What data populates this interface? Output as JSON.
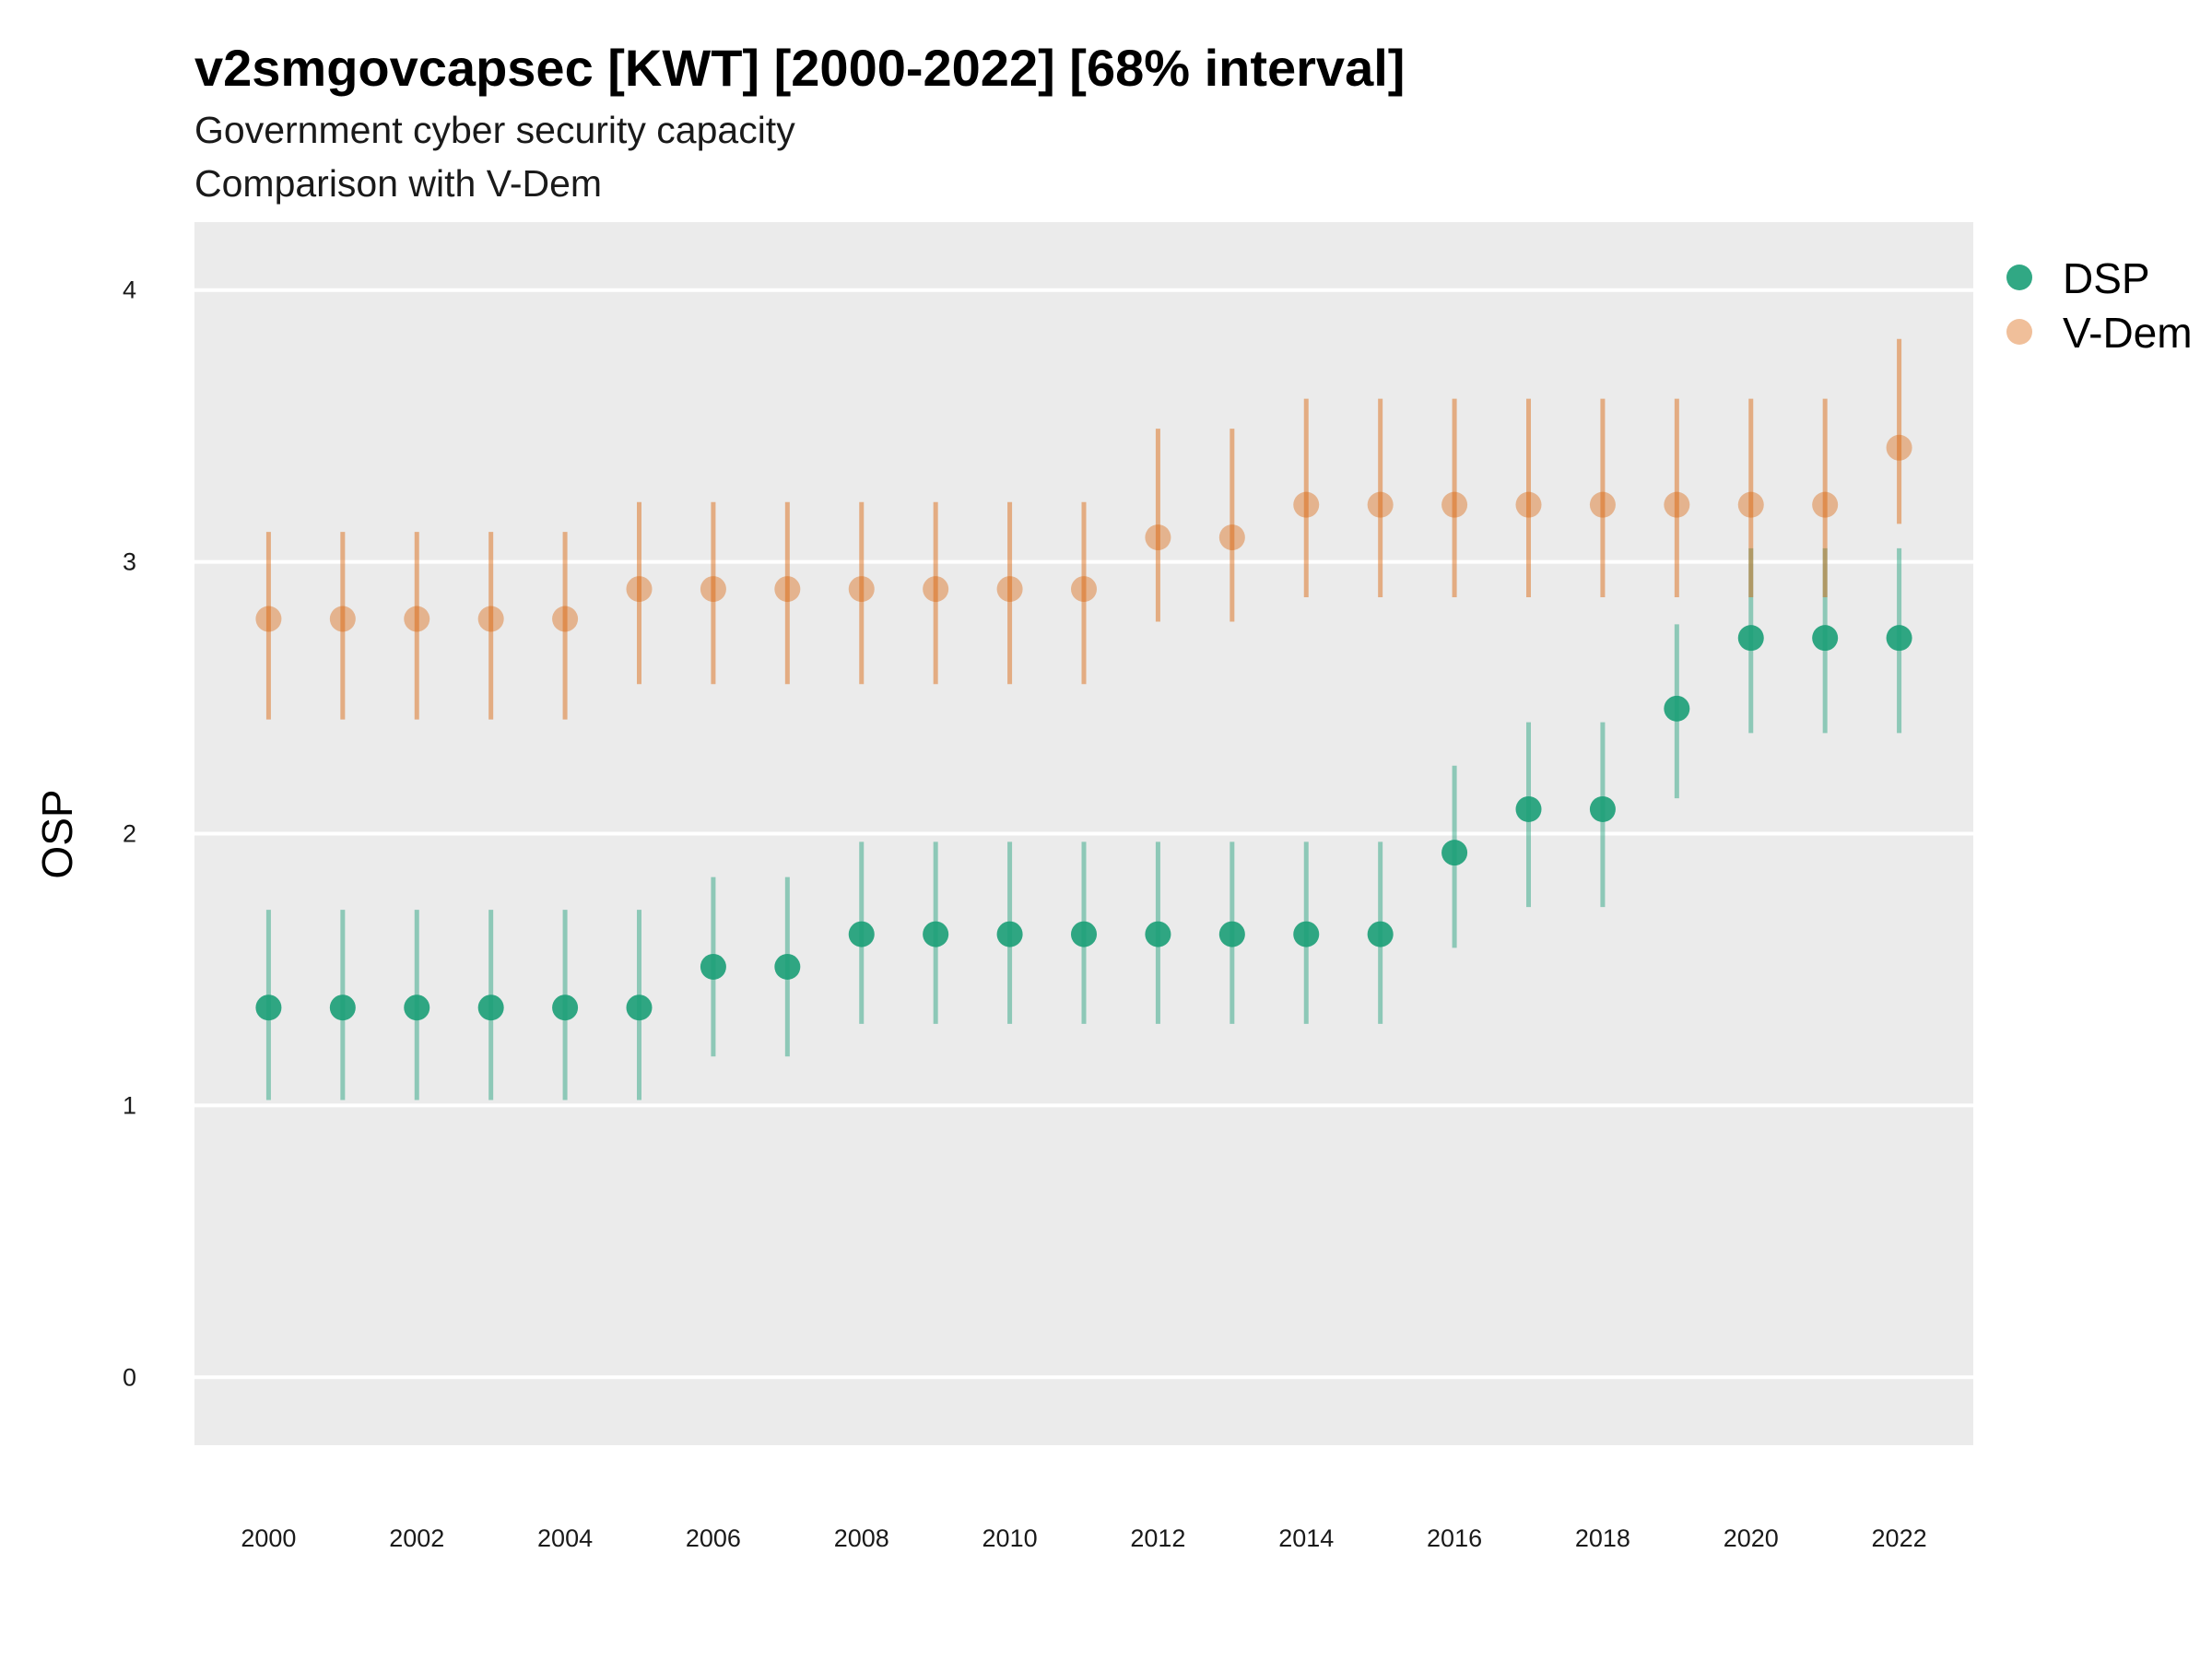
{
  "chart_data": {
    "type": "scatter",
    "title": "v2smgovcapsec [KWT] [2000-2022] [68% interval]",
    "subtitle": "Government cyber security capacity",
    "subtitle2": "Comparison with V-Dem",
    "xlabel": "",
    "ylabel": "OSP",
    "xlim": [
      1999,
      2023
    ],
    "ylim": [
      -0.25,
      4.25
    ],
    "x_ticks": [
      2000,
      2002,
      2004,
      2006,
      2008,
      2010,
      2012,
      2014,
      2016,
      2018,
      2020,
      2022
    ],
    "y_ticks": [
      0,
      1,
      2,
      3,
      4
    ],
    "grid": true,
    "legend_position": "right",
    "x": [
      2000,
      2001,
      2002,
      2003,
      2004,
      2005,
      2006,
      2007,
      2008,
      2009,
      2010,
      2011,
      2012,
      2013,
      2014,
      2015,
      2016,
      2017,
      2018,
      2019,
      2020,
      2021,
      2022
    ],
    "series": [
      {
        "name": "DSP",
        "color": "#1b9e77",
        "values": [
          1.36,
          1.36,
          1.36,
          1.36,
          1.36,
          1.36,
          1.51,
          1.51,
          1.63,
          1.63,
          1.63,
          1.63,
          1.63,
          1.63,
          1.63,
          1.63,
          1.93,
          2.09,
          2.09,
          2.46,
          2.72,
          2.72,
          2.72
        ],
        "lower": [
          1.02,
          1.02,
          1.02,
          1.02,
          1.02,
          1.02,
          1.18,
          1.18,
          1.3,
          1.3,
          1.3,
          1.3,
          1.3,
          1.3,
          1.3,
          1.3,
          1.58,
          1.73,
          1.73,
          2.13,
          2.37,
          2.37,
          2.37
        ],
        "upper": [
          1.72,
          1.72,
          1.72,
          1.72,
          1.72,
          1.72,
          1.84,
          1.84,
          1.97,
          1.97,
          1.97,
          1.97,
          1.97,
          1.97,
          1.97,
          1.97,
          2.25,
          2.41,
          2.41,
          2.77,
          3.05,
          3.05,
          3.05
        ]
      },
      {
        "name": "V-Dem",
        "color": "#d95f02",
        "values": [
          2.79,
          2.79,
          2.79,
          2.79,
          2.79,
          2.9,
          2.9,
          2.9,
          2.9,
          2.9,
          2.9,
          2.9,
          3.09,
          3.09,
          3.21,
          3.21,
          3.21,
          3.21,
          3.21,
          3.21,
          3.21,
          3.21,
          3.42
        ],
        "lower": [
          2.42,
          2.42,
          2.42,
          2.42,
          2.42,
          2.55,
          2.55,
          2.55,
          2.55,
          2.55,
          2.55,
          2.55,
          2.78,
          2.78,
          2.87,
          2.87,
          2.87,
          2.87,
          2.87,
          2.87,
          2.87,
          2.87,
          3.14
        ],
        "upper": [
          3.11,
          3.11,
          3.11,
          3.11,
          3.11,
          3.22,
          3.22,
          3.22,
          3.22,
          3.22,
          3.22,
          3.22,
          3.49,
          3.49,
          3.6,
          3.6,
          3.6,
          3.6,
          3.6,
          3.6,
          3.6,
          3.6,
          3.82
        ]
      }
    ]
  }
}
